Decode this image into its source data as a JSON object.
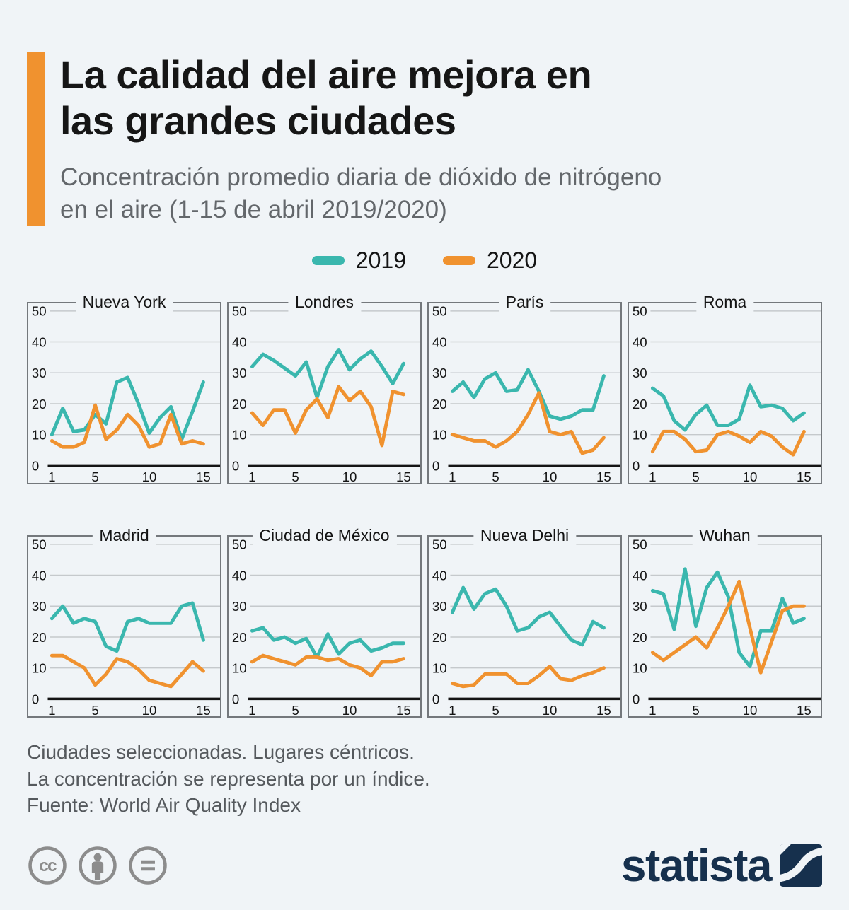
{
  "header": {
    "title_line1": "La calidad del aire mejora en",
    "title_line2": "las grandes ciudades",
    "subtitle_line1": "Concentración promedio diaria de dióxido de nitrógeno",
    "subtitle_line2": "en el aire (1-15 de abril 2019/2020)",
    "accent_color": "#f0922f"
  },
  "chart_data": {
    "type": "line",
    "x": [
      1,
      2,
      3,
      4,
      5,
      6,
      7,
      8,
      9,
      10,
      11,
      12,
      13,
      14,
      15
    ],
    "xticks": [
      1,
      5,
      10,
      15
    ],
    "yticks": [
      0,
      10,
      20,
      30,
      40,
      50
    ],
    "ylim": [
      0,
      50
    ],
    "grid": true,
    "legend_position": "top-center",
    "legend": [
      {
        "name": "2019",
        "color": "#3ab7ae"
      },
      {
        "name": "2020",
        "color": "#f0922f"
      }
    ],
    "panels": [
      {
        "id": "nueva-york",
        "title": "Nueva York",
        "series": [
          {
            "name": "2019",
            "values": [
              10,
              18.5,
              11,
              11.5,
              16.5,
              13.5,
              27,
              28.5,
              20,
              10.5,
              15.5,
              19,
              8.5,
              17.5,
              27
            ]
          },
          {
            "name": "2020",
            "values": [
              8,
              6,
              6,
              7.5,
              19.5,
              8.5,
              11.5,
              16.5,
              13,
              6,
              7,
              16.5,
              7,
              8,
              7
            ]
          }
        ]
      },
      {
        "id": "londres",
        "title": "Londres",
        "series": [
          {
            "name": "2019",
            "values": [
              32,
              36,
              34,
              31.5,
              29,
              33.5,
              22,
              32,
              37.5,
              31,
              34.5,
              37,
              32,
              26.5,
              33
            ]
          },
          {
            "name": "2020",
            "values": [
              17,
              13,
              18,
              18,
              10.5,
              18,
              21.5,
              15.5,
              25.5,
              21,
              24,
              19,
              6.5,
              24,
              23
            ]
          }
        ]
      },
      {
        "id": "paris",
        "title": "París",
        "series": [
          {
            "name": "2019",
            "values": [
              24,
              27,
              22,
              28,
              30,
              24,
              24.5,
              31,
              24,
              16,
              15,
              16,
              18,
              18,
              29
            ]
          },
          {
            "name": "2020",
            "values": [
              10,
              9,
              8,
              8,
              6,
              8,
              11,
              16.5,
              23.5,
              11,
              10,
              11,
              4,
              5,
              9
            ]
          }
        ]
      },
      {
        "id": "roma",
        "title": "Roma",
        "series": [
          {
            "name": "2019",
            "values": [
              25,
              22.5,
              14.5,
              11.5,
              16.5,
              19.5,
              13,
              13,
              15,
              26,
              19,
              19.5,
              18.5,
              14.5,
              17
            ]
          },
          {
            "name": "2020",
            "values": [
              4.5,
              11,
              11,
              8.5,
              4.5,
              5,
              10,
              11,
              9.5,
              7.5,
              11,
              9.5,
              6,
              3.5,
              11
            ]
          }
        ]
      },
      {
        "id": "madrid",
        "title": "Madrid",
        "series": [
          {
            "name": "2019",
            "values": [
              26,
              30,
              24.5,
              26,
              25,
              17,
              15.5,
              25,
              26,
              24.5,
              24.5,
              24.5,
              30,
              31,
              19
            ]
          },
          {
            "name": "2020",
            "values": [
              14,
              14,
              12,
              10,
              4.5,
              8,
              13,
              12,
              9.5,
              6,
              5,
              4,
              8,
              12,
              9
            ]
          }
        ]
      },
      {
        "id": "ciudad-de-mexico",
        "title": "Ciudad de México",
        "series": [
          {
            "name": "2019",
            "values": [
              22,
              23,
              19,
              20,
              18,
              19.5,
              13.5,
              21,
              14.5,
              18,
              19,
              15.5,
              16.5,
              18,
              18
            ]
          },
          {
            "name": "2020",
            "values": [
              12,
              14,
              13,
              12,
              11,
              13.5,
              13.5,
              12.5,
              13,
              11,
              10,
              7.5,
              12,
              12,
              13
            ]
          }
        ]
      },
      {
        "id": "nueva-delhi",
        "title": "Nueva Delhi",
        "series": [
          {
            "name": "2019",
            "values": [
              28,
              36,
              29,
              34,
              35.5,
              30,
              22,
              23,
              26.5,
              28,
              23.5,
              19,
              17.5,
              25,
              23
            ]
          },
          {
            "name": "2020",
            "values": [
              5,
              4,
              4.5,
              8,
              8,
              8,
              5,
              5,
              7.5,
              10.5,
              6.5,
              6,
              7.5,
              8.5,
              10
            ]
          }
        ]
      },
      {
        "id": "wuhan",
        "title": "Wuhan",
        "series": [
          {
            "name": "2019",
            "values": [
              35,
              34,
              22.5,
              42,
              23.5,
              36,
              41,
              33,
              15,
              10.5,
              22,
              22,
              32.5,
              24.5,
              26
            ]
          },
          {
            "name": "2020",
            "values": [
              15,
              12.5,
              15,
              17.5,
              20,
              16.5,
              23,
              30,
              38,
              23,
              8.5,
              18.5,
              28.5,
              30,
              30
            ]
          }
        ]
      }
    ],
    "style": {
      "background": "#f0f4f7",
      "panel_border": "#74787c",
      "gridline": "#c5c9cc",
      "axis": "#141414"
    }
  },
  "footer": {
    "note_line1": "Ciudades seleccionadas. Lugares céntricos.",
    "note_line2": "La concentración se representa por un índice.",
    "source": "Fuente: World Air Quality Index"
  },
  "license": {
    "cc_glyph": "cc",
    "icons": [
      "cc",
      "attribution",
      "no-derivatives"
    ],
    "color": "#8c8c8c"
  },
  "branding": {
    "logo_text": "statista",
    "logo_color": "#16304d"
  }
}
